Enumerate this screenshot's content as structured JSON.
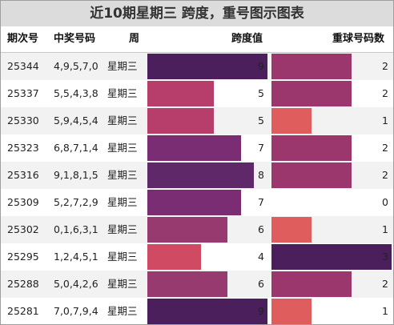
{
  "title": "近10期星期三 跨度，重号图示图表",
  "headers": {
    "issue": "期次号",
    "numbers": "中奖号码",
    "weekday": "周",
    "span": "跨度值",
    "repeat": "重球号码数"
  },
  "colors": {
    "v0": "#ffffff",
    "v1": "#e05d5d",
    "v2": "#9c376d",
    "v3": "#4a1f5c",
    "v4": "#d04a64",
    "v5": "#b73d6b",
    "v6": "#963a70",
    "v7": "#7b2d73",
    "v8": "#5f2868",
    "v9": "#4a1f5c"
  },
  "rows": [
    {
      "issue": "25344",
      "numbers": "4,9,5,7,0",
      "weekday": "星期三",
      "span": 9,
      "repeat": 2
    },
    {
      "issue": "25337",
      "numbers": "5,5,4,3,8",
      "weekday": "星期三",
      "span": 5,
      "repeat": 2
    },
    {
      "issue": "25330",
      "numbers": "5,9,4,5,4",
      "weekday": "星期三",
      "span": 5,
      "repeat": 1
    },
    {
      "issue": "25323",
      "numbers": "6,8,7,1,4",
      "weekday": "星期三",
      "span": 7,
      "repeat": 2
    },
    {
      "issue": "25316",
      "numbers": "9,1,8,1,5",
      "weekday": "星期三",
      "span": 8,
      "repeat": 2
    },
    {
      "issue": "25309",
      "numbers": "5,2,7,2,9",
      "weekday": "星期三",
      "span": 7,
      "repeat": 0
    },
    {
      "issue": "25302",
      "numbers": "0,1,6,3,1",
      "weekday": "星期三",
      "span": 6,
      "repeat": 1
    },
    {
      "issue": "25295",
      "numbers": "1,2,4,5,1",
      "weekday": "星期三",
      "span": 4,
      "repeat": 3
    },
    {
      "issue": "25288",
      "numbers": "5,0,4,2,6",
      "weekday": "星期三",
      "span": 6,
      "repeat": 2
    },
    {
      "issue": "25281",
      "numbers": "7,0,7,9,4",
      "weekday": "星期三",
      "span": 9,
      "repeat": 1
    }
  ],
  "scale": {
    "span_max": 9,
    "repeat_max": 3
  }
}
